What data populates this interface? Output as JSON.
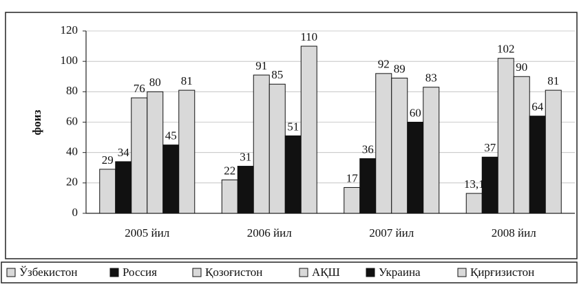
{
  "chart_data": {
    "type": "bar",
    "ylabel": "фоиз",
    "categories": [
      "2005 йил",
      "2006 йил",
      "2007 йил",
      "2008 йил"
    ],
    "series": [
      {
        "name": "Ўзбекистон",
        "color": "#d9d9d9",
        "values": [
          29,
          22,
          17,
          13.1
        ],
        "value_labels": [
          "29",
          "22",
          "17",
          "13,1"
        ]
      },
      {
        "name": "Россия",
        "color": "#111111",
        "values": [
          34,
          31,
          36,
          37
        ]
      },
      {
        "name": "Қозоғистон",
        "color": "#d9d9d9",
        "values": [
          76,
          91,
          92,
          102
        ]
      },
      {
        "name": "АҚШ",
        "color": "#d9d9d9",
        "values": [
          80,
          85,
          89,
          90
        ]
      },
      {
        "name": "Украина",
        "color": "#111111",
        "values": [
          45,
          51,
          60,
          64
        ]
      },
      {
        "name": "Қирғизистон",
        "color": "#d9d9d9",
        "values": [
          81,
          110,
          83,
          81
        ]
      }
    ],
    "ylim": [
      0,
      120
    ],
    "yticks": [
      0,
      20,
      40,
      60,
      80,
      100,
      120
    ],
    "grid": true,
    "legend": "bottom"
  }
}
